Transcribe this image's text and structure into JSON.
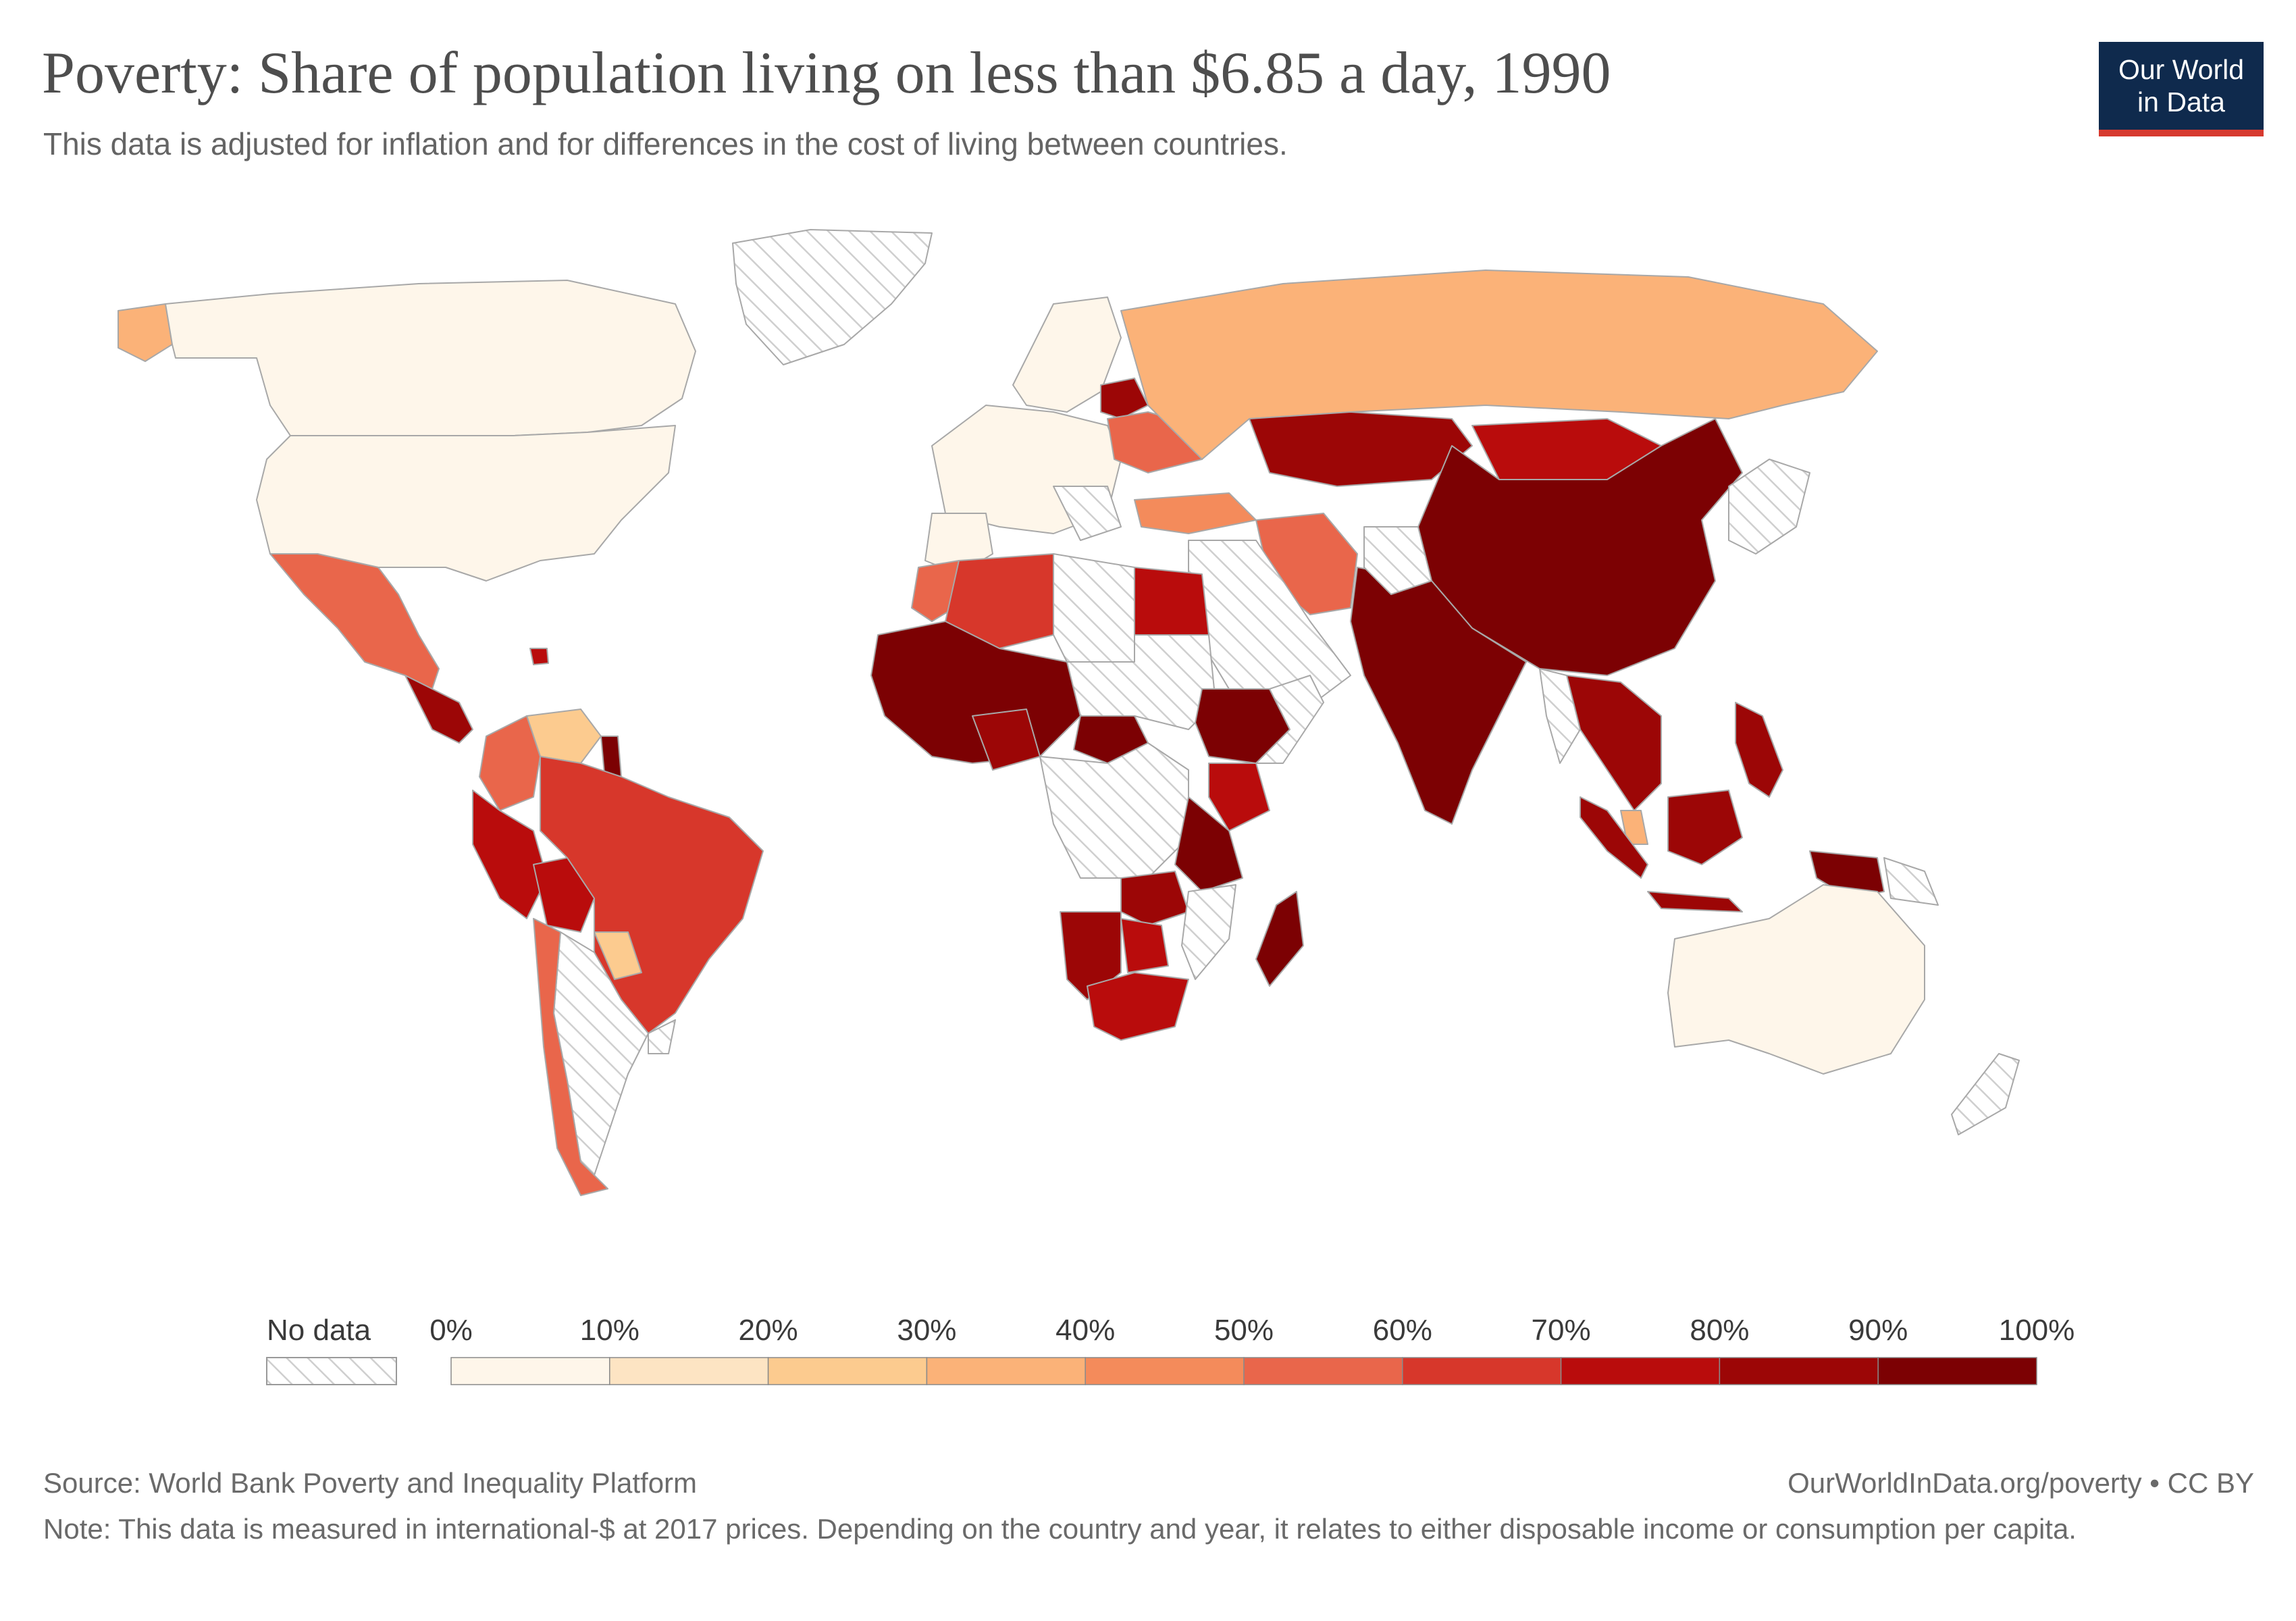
{
  "header": {
    "title": "Poverty: Share of population living on less than $6.85 a day, 1990",
    "subtitle": "This data is adjusted for inflation and for differences in the cost of living between countries."
  },
  "logo": {
    "line1": "Our World",
    "line2": "in Data"
  },
  "legend": {
    "no_data_label": "No data",
    "ticks": [
      "0%",
      "10%",
      "20%",
      "30%",
      "40%",
      "50%",
      "60%",
      "70%",
      "80%",
      "90%",
      "100%"
    ],
    "bins": [
      {
        "min": 0,
        "max": 10,
        "color": "#fef6ea"
      },
      {
        "min": 10,
        "max": 20,
        "color": "#fde4c3"
      },
      {
        "min": 20,
        "max": 30,
        "color": "#fccb8f"
      },
      {
        "min": 30,
        "max": 40,
        "color": "#fbb278"
      },
      {
        "min": 40,
        "max": 50,
        "color": "#f48b5b"
      },
      {
        "min": 50,
        "max": 60,
        "color": "#e9664b"
      },
      {
        "min": 60,
        "max": 70,
        "color": "#d7372b"
      },
      {
        "min": 70,
        "max": 80,
        "color": "#b90c0c"
      },
      {
        "min": 80,
        "max": 90,
        "color": "#9c0606"
      },
      {
        "min": 90,
        "max": 100,
        "color": "#7c0103"
      }
    ],
    "no_data_color": "#dcdcdc"
  },
  "footer": {
    "source": "Source: World Bank Poverty and Inequality Platform",
    "license": "OurWorldInData.org/poverty • CC BY",
    "note": "Note: This data is measured in international-$ at 2017 prices. Depending on the country and year, it relates to either disposable income or consumption per capita."
  }
}
